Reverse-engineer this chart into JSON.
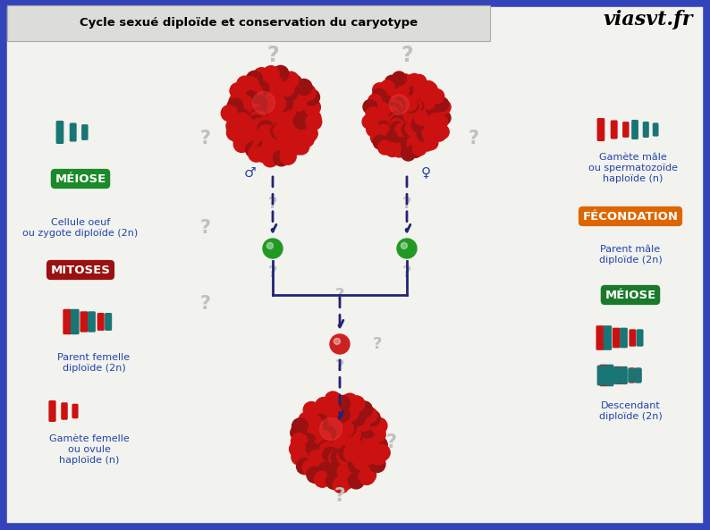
{
  "title": "Cycle sexué diploïde et conservation du caryotype",
  "watermark": "viasvt.fr",
  "bg_color": "#3344bb",
  "inner_bg": "#f2f2ee",
  "colors": {
    "red_chr": "#cc1111",
    "teal_chr": "#1a7575",
    "green_ball": "#229922",
    "red_ball": "#cc2222",
    "arrow_color": "#222277",
    "meiose_green": "#1a8a2a",
    "mitoses_red": "#991111",
    "fecondation_orange": "#dd6600",
    "meiose2_green": "#1a7a2a",
    "text_blue": "#2244aa"
  },
  "labels": {
    "meiose_left": "MÉIOSE",
    "mitoses": "MITOSES",
    "meiose_right": "MÉIOSE",
    "fecondation": "FÉCONDATION",
    "cellule_oeuf": "Cellule oeuf\nou zygote diploïde (2n)",
    "parent_femelle": "Parent femelle\ndiploïde (2n)",
    "gamete_femelle": "Gamète femelle\nou ovule\nhaploïde (n)",
    "gamete_male": "Gamète mâle\nou spermatozoïde\nhaploïde (n)",
    "parent_male": "Parent mâle\ndiploïde (2n)",
    "descendant": "Descendant\ndiploïde (2n)"
  }
}
